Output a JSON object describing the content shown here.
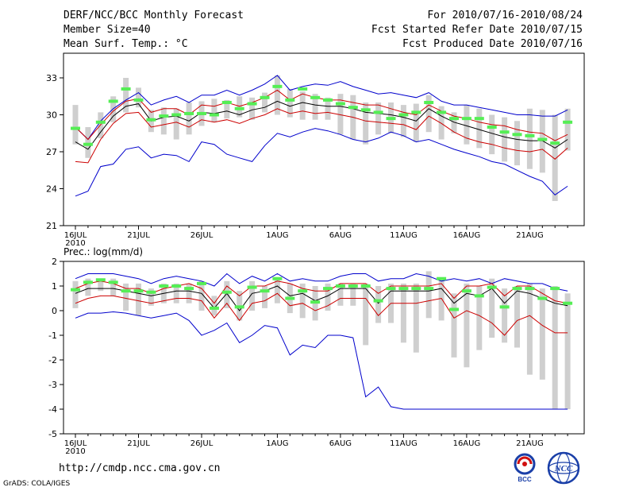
{
  "header": {
    "title": "DERF/NCC/BCC Monthly Forecast",
    "member_size": "Member Size=40",
    "variable": "Mean Surf. Temp.: °C",
    "forecast_period": "For 2010/07/16-2010/08/24",
    "fcst_started": "Fcst Started Refer Date 2010/07/15",
    "fcst_produced": "Fcst Produced Date 2010/07/16"
  },
  "footer": {
    "url": "http://cmdp.ncc.cma.gov.cn",
    "credit": "GrADS: COLA/IGES",
    "logos": [
      {
        "name": "BCC",
        "text": "BCC"
      },
      {
        "name": "NCC",
        "text": "NCC"
      }
    ]
  },
  "colors": {
    "envelope": "#0000cc",
    "spread": "#cc0000",
    "mean": "#000000",
    "median": "#55ee55",
    "box": "#cfcfcf"
  },
  "chart_data": [
    {
      "type": "line",
      "title": "Mean Surf. Temp.: °C",
      "x": [
        "16JUL",
        "17JUL",
        "18JUL",
        "19JUL",
        "20JUL",
        "21JUL",
        "22JUL",
        "23JUL",
        "24JUL",
        "25JUL",
        "26JUL",
        "27JUL",
        "28JUL",
        "29JUL",
        "30JUL",
        "31JUL",
        "1AUG",
        "2AUG",
        "3AUG",
        "4AUG",
        "5AUG",
        "6AUG",
        "7AUG",
        "8AUG",
        "9AUG",
        "10AUG",
        "11AUG",
        "12AUG",
        "13AUG",
        "14AUG",
        "15AUG",
        "16AUG",
        "17AUG",
        "18AUG",
        "19AUG",
        "20AUG",
        "21AUG",
        "22AUG",
        "23AUG",
        "24AUG"
      ],
      "xticks": [
        "16JUL",
        "21JUL",
        "26JUL",
        "1AUG",
        "6AUG",
        "11AUG",
        "16AUG",
        "21AUG"
      ],
      "xtick_sub": "2010",
      "ylim": [
        21,
        35
      ],
      "yticks": [
        21,
        24,
        27,
        30,
        33
      ],
      "series": [
        {
          "name": "max",
          "color": "#0000cc",
          "values": [
            29.0,
            28.0,
            29.5,
            30.5,
            31.2,
            31.8,
            30.8,
            31.2,
            31.5,
            31.0,
            31.6,
            31.6,
            32.0,
            31.6,
            32.0,
            32.5,
            33.2,
            32.0,
            32.3,
            32.5,
            32.4,
            32.7,
            32.3,
            32.0,
            31.7,
            31.8,
            31.6,
            31.4,
            31.8,
            31.1,
            30.8,
            30.8,
            30.6,
            30.4,
            30.2,
            30.0,
            30.0,
            29.9,
            29.9,
            30.4
          ]
        },
        {
          "name": "upper",
          "color": "#cc0000",
          "values": [
            29.0,
            28.0,
            29.2,
            30.3,
            31.1,
            31.3,
            30.2,
            30.5,
            30.5,
            30.0,
            30.8,
            30.7,
            31.0,
            30.7,
            31.0,
            31.4,
            32.0,
            31.2,
            31.7,
            31.4,
            31.2,
            31.2,
            31.0,
            30.8,
            30.8,
            30.5,
            30.2,
            30.0,
            30.8,
            30.3,
            29.9,
            29.7,
            29.4,
            29.2,
            29.1,
            28.8,
            28.6,
            28.5,
            27.9,
            28.4
          ]
        },
        {
          "name": "mean",
          "color": "#000000",
          "values": [
            27.8,
            27.2,
            28.6,
            29.9,
            30.7,
            30.9,
            29.5,
            29.8,
            29.9,
            29.5,
            30.2,
            30.1,
            30.3,
            30.0,
            30.4,
            30.6,
            31.1,
            30.7,
            31.0,
            30.8,
            30.7,
            30.7,
            30.5,
            30.2,
            30.1,
            30.0,
            29.8,
            29.5,
            30.5,
            29.9,
            29.4,
            29.1,
            28.8,
            28.5,
            28.2,
            28.0,
            27.9,
            27.9,
            27.3,
            28.0
          ]
        },
        {
          "name": "lower",
          "color": "#cc0000",
          "values": [
            26.2,
            26.1,
            28.0,
            29.3,
            30.1,
            30.2,
            29.0,
            29.2,
            29.4,
            29.0,
            29.6,
            29.4,
            29.6,
            29.3,
            29.7,
            30.0,
            30.5,
            30.1,
            30.3,
            30.1,
            30.2,
            30.0,
            29.8,
            29.5,
            29.4,
            29.3,
            29.2,
            28.8,
            29.9,
            29.3,
            28.6,
            28.1,
            27.8,
            27.6,
            27.3,
            27.1,
            27.0,
            27.2,
            26.4,
            27.3
          ]
        },
        {
          "name": "min",
          "color": "#0000cc",
          "values": [
            23.4,
            23.8,
            25.8,
            26.0,
            27.2,
            27.4,
            26.5,
            26.8,
            26.7,
            26.2,
            27.8,
            27.6,
            26.8,
            26.5,
            26.2,
            27.5,
            28.5,
            28.2,
            28.6,
            28.9,
            28.7,
            28.4,
            28.0,
            27.8,
            28.1,
            28.6,
            28.3,
            27.8,
            28.0,
            27.6,
            27.2,
            26.9,
            26.6,
            26.2,
            26.0,
            25.5,
            25.0,
            24.6,
            23.5,
            24.2
          ]
        }
      ],
      "median": [
        28.9,
        27.6,
        29.4,
        31.1,
        32.1,
        31.2,
        29.6,
        29.9,
        30.0,
        30.1,
        30.1,
        30.0,
        31.0,
        30.5,
        30.9,
        31.4,
        32.3,
        31.2,
        32.1,
        31.4,
        31.2,
        30.9,
        30.6,
        30.4,
        30.2,
        29.7,
        30.0,
        30.2,
        31.0,
        30.2,
        29.7,
        29.7,
        29.7,
        29.0,
        28.6,
        28.4,
        28.3,
        28.0,
        27.7,
        29.4
      ],
      "box": [
        [
          27.6,
          30.8
        ],
        [
          26.5,
          29.0
        ],
        [
          28.1,
          30.2
        ],
        [
          29.4,
          31.5
        ],
        [
          30.2,
          33.0
        ],
        [
          30.6,
          32.2
        ],
        [
          28.6,
          30.4
        ],
        [
          28.4,
          30.6
        ],
        [
          28.0,
          30.5
        ],
        [
          28.4,
          31.0
        ],
        [
          29.1,
          31.1
        ],
        [
          29.4,
          31.3
        ],
        [
          29.7,
          31.2
        ],
        [
          29.8,
          31.5
        ],
        [
          29.6,
          31.4
        ],
        [
          30.2,
          31.8
        ],
        [
          30.0,
          33.2
        ],
        [
          29.8,
          32.1
        ],
        [
          29.6,
          31.9
        ],
        [
          29.6,
          31.7
        ],
        [
          29.6,
          31.4
        ],
        [
          28.4,
          31.7
        ],
        [
          28.0,
          31.6
        ],
        [
          27.6,
          31.0
        ],
        [
          28.4,
          31.0
        ],
        [
          28.5,
          31.0
        ],
        [
          28.2,
          30.8
        ],
        [
          27.8,
          30.9
        ],
        [
          28.6,
          31.6
        ],
        [
          28.0,
          30.7
        ],
        [
          28.5,
          30.2
        ],
        [
          27.6,
          30.8
        ],
        [
          27.3,
          30.5
        ],
        [
          26.8,
          30.0
        ],
        [
          26.2,
          29.8
        ],
        [
          25.9,
          29.5
        ],
        [
          25.6,
          30.5
        ],
        [
          25.3,
          30.4
        ],
        [
          23.0,
          30.0
        ],
        [
          27.1,
          30.5
        ]
      ]
    },
    {
      "type": "line",
      "title": "Prec.: log(mm/d)",
      "x": [
        "16JUL",
        "17JUL",
        "18JUL",
        "19JUL",
        "20JUL",
        "21JUL",
        "22JUL",
        "23JUL",
        "24JUL",
        "25JUL",
        "26JUL",
        "27JUL",
        "28JUL",
        "29JUL",
        "30JUL",
        "31JUL",
        "1AUG",
        "2AUG",
        "3AUG",
        "4AUG",
        "5AUG",
        "6AUG",
        "7AUG",
        "8AUG",
        "9AUG",
        "10AUG",
        "11AUG",
        "12AUG",
        "13AUG",
        "14AUG",
        "15AUG",
        "16AUG",
        "17AUG",
        "18AUG",
        "19AUG",
        "20AUG",
        "21AUG",
        "22AUG",
        "23AUG",
        "24AUG"
      ],
      "xticks": [
        "16JUL",
        "21JUL",
        "26JUL",
        "1AUG",
        "6AUG",
        "11AUG",
        "16AUG",
        "21AUG"
      ],
      "xtick_sub": "2010",
      "ylim": [
        -5,
        2
      ],
      "yticks": [
        -5,
        -4,
        -3,
        -2,
        -1,
        0,
        1,
        2
      ],
      "series": [
        {
          "name": "max",
          "color": "#0000cc",
          "values": [
            1.3,
            1.5,
            1.5,
            1.5,
            1.4,
            1.3,
            1.1,
            1.3,
            1.4,
            1.3,
            1.2,
            1.0,
            1.5,
            1.1,
            1.4,
            1.2,
            1.5,
            1.2,
            1.3,
            1.2,
            1.2,
            1.4,
            1.5,
            1.5,
            1.2,
            1.3,
            1.3,
            1.5,
            1.4,
            1.2,
            1.3,
            1.2,
            1.3,
            1.1,
            1.3,
            1.2,
            1.1,
            1.1,
            0.9,
            0.8
          ]
        },
        {
          "name": "upper",
          "color": "#cc0000",
          "values": [
            0.9,
            1.1,
            1.2,
            1.1,
            0.9,
            0.9,
            0.7,
            0.9,
            1.0,
            1.1,
            0.9,
            0.3,
            1.0,
            0.6,
            1.0,
            1.0,
            1.2,
            1.1,
            0.9,
            0.8,
            0.8,
            1.1,
            1.1,
            1.1,
            0.7,
            1.0,
            1.0,
            1.0,
            1.0,
            1.1,
            0.5,
            1.0,
            1.0,
            1.1,
            0.6,
            1.0,
            1.0,
            0.7,
            0.4,
            0.3
          ]
        },
        {
          "name": "mean",
          "color": "#000000",
          "values": [
            0.7,
            0.9,
            0.9,
            0.9,
            0.8,
            0.7,
            0.6,
            0.7,
            0.8,
            0.8,
            0.7,
            0.1,
            0.7,
            0.0,
            0.7,
            0.8,
            1.0,
            0.6,
            0.7,
            0.4,
            0.6,
            0.9,
            0.9,
            0.9,
            0.3,
            0.8,
            0.8,
            0.8,
            0.8,
            0.9,
            0.3,
            0.7,
            0.6,
            0.9,
            0.3,
            0.8,
            0.7,
            0.5,
            0.3,
            0.2
          ]
        },
        {
          "name": "lower",
          "color": "#cc0000",
          "values": [
            0.3,
            0.5,
            0.6,
            0.6,
            0.5,
            0.4,
            0.3,
            0.4,
            0.5,
            0.5,
            0.4,
            -0.3,
            0.3,
            -0.4,
            0.3,
            0.4,
            0.7,
            0.2,
            0.3,
            0.0,
            0.2,
            0.5,
            0.5,
            0.5,
            -0.2,
            0.3,
            0.3,
            0.3,
            0.4,
            0.5,
            -0.3,
            0.0,
            -0.2,
            -0.5,
            -1.0,
            -0.4,
            -0.2,
            -0.6,
            -0.9,
            -0.9
          ]
        },
        {
          "name": "min",
          "color": "#0000cc",
          "values": [
            -0.3,
            -0.1,
            -0.1,
            -0.05,
            -0.1,
            -0.2,
            -0.3,
            -0.2,
            -0.1,
            -0.4,
            -1.0,
            -0.8,
            -0.5,
            -1.3,
            -1.0,
            -0.6,
            -0.7,
            -1.8,
            -1.4,
            -1.5,
            -1.0,
            -1.0,
            -1.1,
            -3.5,
            -3.1,
            -3.9,
            -4.0,
            -4.0,
            -4.0,
            -4.0,
            -4.0,
            -4.0,
            -4.0,
            -4.0,
            -4.0,
            -4.0,
            -4.0,
            -4.0,
            -4.0,
            -4.0
          ]
        }
      ],
      "median": [
        0.85,
        1.15,
        1.25,
        1.15,
        0.8,
        0.8,
        0.75,
        1.0,
        1.0,
        0.9,
        1.1,
        0.1,
        0.75,
        0.15,
        0.95,
        0.8,
        1.3,
        0.5,
        0.8,
        0.35,
        0.9,
        1.0,
        1.0,
        1.0,
        0.4,
        0.9,
        0.9,
        0.9,
        0.9,
        1.3,
        0.05,
        0.8,
        0.6,
        0.95,
        0.15,
        0.9,
        0.9,
        0.5,
        0.9,
        0.3
      ],
      "box": [
        [
          0.1,
          1.2
        ],
        [
          0.6,
          1.3
        ],
        [
          0.8,
          1.3
        ],
        [
          0.6,
          1.3
        ],
        [
          0.0,
          1.1
        ],
        [
          -0.2,
          1.1
        ],
        [
          0.2,
          0.9
        ],
        [
          0.3,
          1.1
        ],
        [
          0.3,
          1.1
        ],
        [
          0.3,
          1.1
        ],
        [
          0.0,
          1.2
        ],
        [
          -0.2,
          0.6
        ],
        [
          0.1,
          1.2
        ],
        [
          -0.4,
          0.8
        ],
        [
          0.0,
          1.2
        ],
        [
          0.1,
          1.0
        ],
        [
          0.3,
          1.3
        ],
        [
          -0.1,
          1.1
        ],
        [
          -0.3,
          1.1
        ],
        [
          -0.4,
          1.0
        ],
        [
          0.0,
          1.1
        ],
        [
          0.2,
          1.1
        ],
        [
          0.2,
          1.1
        ],
        [
          -1.4,
          1.1
        ],
        [
          -0.5,
          1.0
        ],
        [
          -0.5,
          1.1
        ],
        [
          -1.3,
          1.1
        ],
        [
          -1.7,
          1.1
        ],
        [
          -0.3,
          1.6
        ],
        [
          -0.4,
          1.3
        ],
        [
          -1.9,
          0.7
        ],
        [
          -2.3,
          1.1
        ],
        [
          -1.6,
          1.0
        ],
        [
          -1.1,
          1.3
        ],
        [
          -1.3,
          0.9
        ],
        [
          -1.5,
          1.0
        ],
        [
          -2.6,
          1.1
        ],
        [
          -2.8,
          0.9
        ],
        [
          -4.0,
          1.0
        ],
        [
          -4.0,
          0.7
        ]
      ]
    }
  ]
}
